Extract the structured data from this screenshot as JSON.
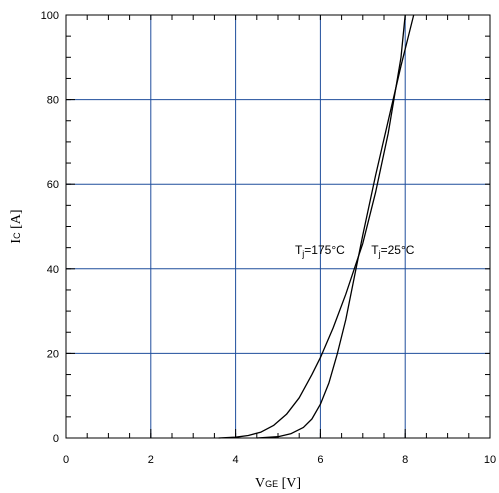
{
  "chart_data": {
    "type": "line",
    "xlim": [
      0,
      10
    ],
    "ylim": [
      0,
      100
    ],
    "x_ticks": [
      0,
      2,
      4,
      6,
      8,
      10
    ],
    "y_ticks": [
      0,
      20,
      40,
      60,
      80,
      100
    ],
    "x_minor_step": 0.5,
    "y_minor_step": 5,
    "grid": true,
    "grid_color": "#1f4e9c",
    "line_color": "#000000",
    "xlabel": {
      "main": "V",
      "sub": "GE",
      "unit": " [V]"
    },
    "ylabel": {
      "main": "I",
      "sub": "C",
      "unit": " [A]"
    },
    "series": [
      {
        "name": "Tj=175°C",
        "x": [
          3.6,
          4.0,
          4.3,
          4.6,
          4.9,
          5.2,
          5.5,
          5.8,
          6.0,
          6.3,
          6.6,
          7.0,
          7.3,
          7.6,
          7.9,
          8.0
        ],
        "y": [
          0,
          0.2,
          0.6,
          1.4,
          3.0,
          5.6,
          9.5,
          15.0,
          19.0,
          26.0,
          34.0,
          46.0,
          58.0,
          72.0,
          90.0,
          100.0
        ]
      },
      {
        "name": "Tj=25°C",
        "x": [
          4.5,
          5.0,
          5.3,
          5.6,
          5.8,
          6.0,
          6.2,
          6.4,
          6.6,
          6.8,
          7.0,
          7.3,
          7.6,
          7.9,
          8.2
        ],
        "y": [
          0,
          0.3,
          1.0,
          2.5,
          4.5,
          8.0,
          13.0,
          20.0,
          28.0,
          38.0,
          48.0,
          62.0,
          75.0,
          88.0,
          100.0
        ]
      }
    ],
    "annotations": [
      {
        "main": "T",
        "sub": "j",
        "text": "=175°C",
        "x": 5.4,
        "y": 43.5
      },
      {
        "main": "T",
        "sub": "j",
        "text": "=25°C",
        "x": 7.2,
        "y": 43.5
      }
    ]
  }
}
